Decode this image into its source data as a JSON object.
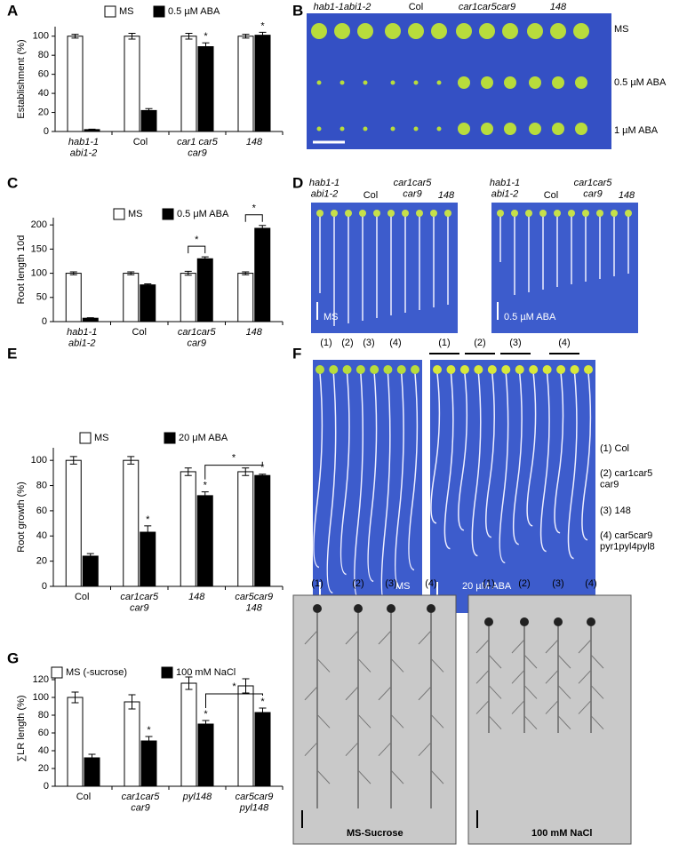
{
  "chart_data": [
    {
      "type": "bar",
      "panel_label": "A",
      "ylabel": "Establishment (%)",
      "categories": [
        "hab1-1\nabi1-2",
        "Col",
        "car1 car5\ncar9",
        "148"
      ],
      "category_style": [
        "italic",
        "normal",
        "italic",
        "italic"
      ],
      "series": [
        {
          "name": "MS",
          "color": "#ffffff",
          "values": [
            100,
            100,
            100,
            100
          ],
          "errors": [
            2,
            3,
            3,
            2
          ]
        },
        {
          "name": "0.5 µM ABA",
          "color": "#000000",
          "values": [
            2,
            22,
            89,
            101
          ],
          "errors": [
            0.5,
            2,
            4,
            3
          ],
          "stars": [
            null,
            null,
            "*",
            "*"
          ]
        }
      ],
      "ylim": [
        0,
        110
      ],
      "yticks": [
        0,
        20,
        40,
        60,
        80,
        100
      ]
    },
    {
      "type": "bar",
      "panel_label": "C",
      "ylabel": "Root length 10d",
      "categories": [
        "hab1-1\nabi1-2",
        "Col",
        "car1car5\ncar9",
        "148"
      ],
      "category_style": [
        "italic",
        "normal",
        "italic",
        "italic"
      ],
      "series": [
        {
          "name": "MS",
          "color": "#ffffff",
          "values": [
            100,
            100,
            100,
            100
          ],
          "errors": [
            3,
            3,
            4,
            3
          ]
        },
        {
          "name": "0.5 μM ABA",
          "color": "#000000",
          "values": [
            7,
            76,
            130,
            193
          ],
          "errors": [
            1,
            2,
            4,
            6
          ]
        }
      ],
      "pair_stars": [
        null,
        null,
        "*",
        "*"
      ],
      "ylim": [
        0,
        215
      ],
      "yticks": [
        0,
        50,
        100,
        150,
        200
      ]
    },
    {
      "type": "bar",
      "panel_label": "E",
      "ylabel": "Root growth (%)",
      "categories": [
        "Col",
        "car1car5\ncar9",
        "148",
        "car5car9\n148"
      ],
      "category_style": [
        "normal",
        "italic",
        "italic",
        "italic"
      ],
      "series": [
        {
          "name": "MS",
          "color": "#ffffff",
          "values": [
            100,
            100,
            91,
            91
          ],
          "errors": [
            3,
            3,
            3,
            3
          ]
        },
        {
          "name": "20 μM ABA",
          "color": "#000000",
          "values": [
            24,
            43,
            72,
            88
          ],
          "errors": [
            2,
            5,
            3,
            1
          ],
          "stars": [
            null,
            "*",
            "*",
            "*"
          ]
        }
      ],
      "bracket": {
        "label": "*",
        "between": [
          "148",
          "car5car9\n148"
        ]
      },
      "ylim": [
        0,
        110
      ],
      "yticks": [
        0,
        20,
        40,
        60,
        80,
        100
      ]
    },
    {
      "type": "bar",
      "panel_label": "G",
      "ylabel": "∑LR length (%)",
      "categories": [
        "Col",
        "car1car5\ncar9",
        "pyl148",
        "car5car9\npyl148"
      ],
      "category_style": [
        "normal",
        "italic",
        "italic",
        "italic"
      ],
      "series": [
        {
          "name": "MS (-sucrose)",
          "color": "#ffffff",
          "values": [
            100,
            95,
            116,
            113
          ],
          "errors": [
            6,
            8,
            7,
            8
          ]
        },
        {
          "name": "100 mM  NaCl",
          "color": "#000000",
          "values": [
            32,
            51,
            70,
            83
          ],
          "errors": [
            4,
            5,
            4,
            5
          ],
          "stars": [
            null,
            "*",
            "*",
            "*"
          ]
        }
      ],
      "bracket": {
        "label": "*",
        "between": [
          "pyl148",
          "car5car9\npyl148"
        ]
      },
      "ylim": [
        0,
        130
      ],
      "yticks": [
        0,
        20,
        40,
        60,
        80,
        100,
        120
      ]
    }
  ],
  "photo_panels": {
    "B": {
      "panel_label": "B",
      "columns": [
        "hab1-1abi1-2",
        "Col",
        "car1car5car9",
        "148"
      ],
      "rows": [
        "MS",
        "0.5 µM ABA",
        "1 µM ABA"
      ]
    },
    "D": {
      "panel_label": "D",
      "photos": [
        {
          "columns": [
            "hab1-1\nabi1-2",
            "Col",
            "car1car5\ncar9",
            "148"
          ],
          "condition": "MS"
        },
        {
          "columns": [
            "hab1-1\nabi1-2",
            "Col",
            "car1car5\ncar9",
            "148"
          ],
          "condition": "0.5 µM ABA"
        }
      ]
    },
    "F": {
      "panel_label": "F",
      "photos": [
        {
          "lanes": [
            "(1)",
            "(2)",
            "(3)",
            "(4)"
          ],
          "condition": "MS"
        },
        {
          "lanes": [
            "(1)",
            "(2)",
            "(3)",
            "(4)"
          ],
          "condition": "20 µM ABA"
        }
      ],
      "key": [
        "(1) Col",
        "(2) car1car5\ncar9",
        "(3) 148",
        "(4) car5car9\npyr1pyl4pyl8"
      ]
    },
    "G": {
      "photos": [
        {
          "lanes": [
            "(1)",
            "(2)",
            "(3)",
            "(4)"
          ],
          "condition": "MS-Sucrose"
        },
        {
          "lanes": [
            "(1)",
            "(2)",
            "(3)",
            "(4)"
          ],
          "condition": "100 mM  NaCl"
        }
      ]
    }
  }
}
